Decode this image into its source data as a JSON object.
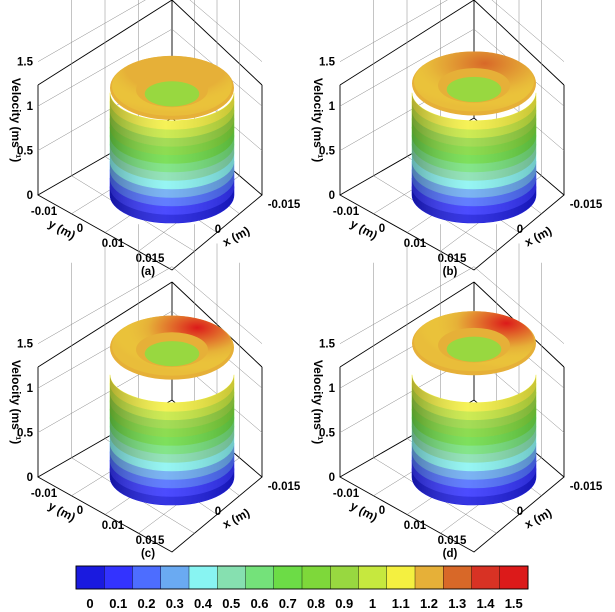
{
  "chart_data": [
    {
      "type": "surface",
      "panel_label": "(a)",
      "zlabel": "Velocity (ms⁻¹)",
      "xlabel": "x (m)",
      "ylabel": "y (m)",
      "z_ticks": [
        "0",
        "0.5",
        "1",
        "1.5"
      ],
      "x_ticks": [
        "0",
        "-0.015"
      ],
      "y_ticks": [
        "-0.01",
        "0",
        "0.01",
        "0.015"
      ],
      "zlim": [
        0,
        1.8
      ],
      "wall_velocity_max": 1.15,
      "rim_velocity_max": 1.25,
      "peak_asymmetry": 0.05
    },
    {
      "type": "surface",
      "panel_label": "(b)",
      "zlabel": "Velocity (ms⁻¹)",
      "xlabel": "x (m)",
      "ylabel": "y (m)",
      "z_ticks": [
        "0",
        "0.5",
        "1",
        "1.5"
      ],
      "x_ticks": [
        "0",
        "-0.015"
      ],
      "y_ticks": [
        "-0.01",
        "0",
        "0.01",
        "0.015"
      ],
      "zlim": [
        0,
        1.8
      ],
      "wall_velocity_max": 1.15,
      "rim_velocity_max": 1.3,
      "peak_asymmetry": 0.15
    },
    {
      "type": "surface",
      "panel_label": "(c)",
      "zlabel": "Velocity (ms⁻¹)",
      "xlabel": "x (m)",
      "ylabel": "y (m)",
      "z_ticks": [
        "0",
        "0.5",
        "1",
        "1.5"
      ],
      "x_ticks": [
        "0",
        "-0.015"
      ],
      "y_ticks": [
        "-0.01",
        "0",
        "0.01",
        "0.015"
      ],
      "zlim": [
        0,
        1.8
      ],
      "wall_velocity_max": 1.15,
      "rim_velocity_max": 1.5,
      "peak_asymmetry": 0.35
    },
    {
      "type": "surface",
      "panel_label": "(d)",
      "zlabel": "Velocity (ms⁻¹)",
      "xlabel": "x (m)",
      "ylabel": "y (m)",
      "z_ticks": [
        "0",
        "0.5",
        "1",
        "1.5"
      ],
      "x_ticks": [
        "0",
        "-0.015"
      ],
      "y_ticks": [
        "-0.01",
        "0",
        "0.01",
        "0.015"
      ],
      "zlim": [
        0,
        1.8
      ],
      "wall_velocity_max": 1.15,
      "rim_velocity_max": 1.55,
      "peak_asymmetry": 0.45
    }
  ],
  "colorbar": {
    "levels": [
      "0",
      "0.1",
      "0.2",
      "0.3",
      "0.4",
      "0.5",
      "0.6",
      "0.7",
      "0.8",
      "0.9",
      "1",
      "1.1",
      "1.2",
      "1.3",
      "1.4",
      "1.5"
    ],
    "colors": [
      "#1a1adf",
      "#3333ff",
      "#4d6dff",
      "#6aaaf2",
      "#88f4f2",
      "#86e0b0",
      "#74e27a",
      "#6cdc46",
      "#7ed83a",
      "#98d840",
      "#c6e83e",
      "#f4f040",
      "#e6b038",
      "#d86828",
      "#d83224",
      "#dc1a1a"
    ]
  }
}
